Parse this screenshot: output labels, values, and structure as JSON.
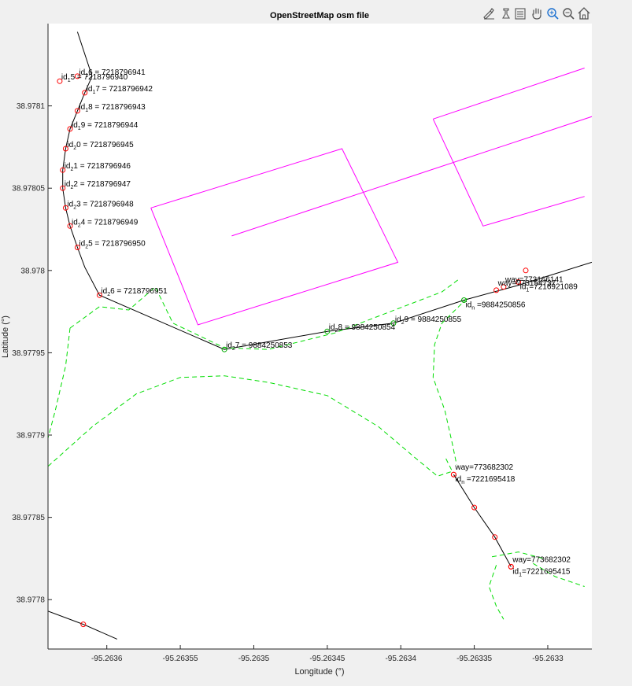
{
  "chart_data": {
    "type": "line",
    "title": "OpenStreetMap osm file",
    "xlabel": "Longitude (°)",
    "ylabel": "Latitude (°)",
    "xlim": [
      -95.26364,
      -95.26327
    ],
    "ylim": [
      38.97777,
      38.97815
    ],
    "x_ticks": [
      -95.2636,
      -95.26355,
      -95.2635,
      -95.26345,
      -95.2634,
      -95.26335,
      -95.2633
    ],
    "x_tick_labels": [
      "-95.2636",
      "-95.26355",
      "-95.2635",
      "-95.26345",
      "-95.2634",
      "-95.26335",
      "-95.2633"
    ],
    "y_ticks": [
      38.9778,
      38.97785,
      38.9779,
      38.97795,
      38.978,
      38.97805,
      38.9781
    ],
    "y_tick_labels": [
      "38.9778",
      "38.97785",
      "38.9779",
      "38.97795",
      "38.978",
      "38.97805",
      "38.9781"
    ],
    "grid": false,
    "series": [
      {
        "style": "black-solid",
        "color": "#000000",
        "points": [
          [
            -95.26362,
            38.978145
          ],
          [
            -95.26361,
            38.978118
          ],
          [
            -95.263615,
            38.978108
          ],
          [
            -95.26362,
            38.978097
          ],
          [
            -95.263625,
            38.978086
          ],
          [
            -95.263628,
            38.978074
          ],
          [
            -95.26363,
            38.978061
          ],
          [
            -95.26363,
            38.97805
          ],
          [
            -95.263628,
            38.978038
          ],
          [
            -95.263625,
            38.978027
          ],
          [
            -95.26362,
            38.978014
          ],
          [
            -95.263615,
            38.978002
          ],
          [
            -95.263605,
            38.977985
          ],
          [
            -95.26352,
            38.977952
          ],
          [
            -95.26345,
            38.977963
          ],
          [
            -95.263405,
            38.977968
          ],
          [
            -95.263357,
            38.977982
          ],
          [
            -95.26332,
            38.977991
          ],
          [
            -95.26327,
            38.978005
          ]
        ]
      },
      {
        "style": "black-solid",
        "color": "#000000",
        "points": [
          [
            -95.263364,
            38.977876
          ],
          [
            -95.26335,
            38.977856
          ],
          [
            -95.263336,
            38.977838
          ],
          [
            -95.263325,
            38.97782
          ]
        ]
      },
      {
        "style": "black-solid",
        "color": "#000000",
        "points": [
          [
            -95.26364,
            38.977793
          ],
          [
            -95.263616,
            38.977785
          ],
          [
            -95.263593,
            38.977776
          ]
        ]
      },
      {
        "style": "magenta-solid",
        "color": "#ff00ff",
        "points": [
          [
            -95.26357,
            38.978038
          ],
          [
            -95.26344,
            38.978074
          ],
          [
            -95.263402,
            38.978005
          ],
          [
            -95.263538,
            38.977967
          ],
          [
            -95.26357,
            38.978038
          ]
        ]
      },
      {
        "style": "magenta-solid",
        "color": "#ff00ff",
        "points": [
          [
            -95.263515,
            38.978021
          ],
          [
            -95.263265,
            38.978095
          ]
        ]
      },
      {
        "style": "magenta-solid",
        "color": "#ff00ff",
        "points": [
          [
            -95.263378,
            38.978092
          ],
          [
            -95.263275,
            38.978123
          ]
        ]
      },
      {
        "style": "magenta-solid",
        "color": "#ff00ff",
        "points": [
          [
            -95.263378,
            38.978092
          ],
          [
            -95.263344,
            38.978027
          ],
          [
            -95.263275,
            38.978045
          ]
        ]
      },
      {
        "style": "green-dashed",
        "color": "#00dd00",
        "points": [
          [
            -95.263625,
            38.977965
          ],
          [
            -95.263605,
            38.977978
          ],
          [
            -95.263585,
            38.977976
          ],
          [
            -95.263567,
            38.97799
          ],
          [
            -95.263555,
            38.977968
          ],
          [
            -95.26352,
            38.977953
          ],
          [
            -95.26349,
            38.977952
          ],
          [
            -95.263445,
            38.977962
          ],
          [
            -95.26341,
            38.977974
          ],
          [
            -95.263372,
            38.977987
          ],
          [
            -95.26336,
            38.977995
          ]
        ]
      },
      {
        "style": "green-dashed",
        "color": "#00dd00",
        "points": [
          [
            -95.263625,
            38.977965
          ],
          [
            -95.263628,
            38.977942
          ],
          [
            -95.263635,
            38.977915
          ],
          [
            -95.263643,
            38.977888
          ]
        ]
      },
      {
        "style": "green-dashed",
        "color": "#00dd00",
        "points": [
          [
            -95.26364,
            38.977881
          ],
          [
            -95.26361,
            38.977905
          ],
          [
            -95.26358,
            38.977925
          ],
          [
            -95.26355,
            38.977935
          ],
          [
            -95.26352,
            38.977936
          ],
          [
            -95.26349,
            38.977932
          ],
          [
            -95.26345,
            38.977924
          ],
          [
            -95.263415,
            38.977905
          ],
          [
            -95.26339,
            38.977886
          ],
          [
            -95.263375,
            38.977875
          ],
          [
            -95.263365,
            38.977878
          ],
          [
            -95.26337,
            38.977887
          ]
        ]
      },
      {
        "style": "green-dashed",
        "color": "#00dd00",
        "points": [
          [
            -95.263355,
            38.977983
          ],
          [
            -95.263372,
            38.977968
          ],
          [
            -95.263377,
            38.977955
          ],
          [
            -95.263378,
            38.977935
          ],
          [
            -95.26337,
            38.977915
          ],
          [
            -95.263365,
            38.977895
          ],
          [
            -95.263362,
            38.977882
          ]
        ]
      },
      {
        "style": "green-dashed",
        "color": "#00dd00",
        "points": [
          [
            -95.263335,
            38.977821
          ],
          [
            -95.26334,
            38.977808
          ],
          [
            -95.263335,
            38.977796
          ],
          [
            -95.26333,
            38.977788
          ]
        ]
      },
      {
        "style": "green-dashed",
        "color": "#00dd00",
        "points": [
          [
            -95.263338,
            38.977826
          ],
          [
            -95.26332,
            38.977829
          ],
          [
            -95.263303,
            38.977825
          ]
        ]
      },
      {
        "style": "green-dashed",
        "color": "#00dd00",
        "points": [
          [
            -95.26331,
            38.977822
          ],
          [
            -95.263295,
            38.977814
          ],
          [
            -95.263275,
            38.977808
          ]
        ]
      }
    ],
    "nodes": [
      {
        "x": -95.263632,
        "y": 38.978115,
        "color": "#ff0000",
        "label": "id",
        "sub": "1",
        "rest": "5 = 7218796940"
      },
      {
        "x": -95.26362,
        "y": 38.978118,
        "color": "#ff0000",
        "label": "id",
        "sub": "1",
        "rest": "6 = 7218796941"
      },
      {
        "x": -95.263615,
        "y": 38.978108,
        "color": "#ff0000",
        "label": "id",
        "sub": "1",
        "rest": "7 = 7218796942"
      },
      {
        "x": -95.26362,
        "y": 38.978097,
        "color": "#ff0000",
        "label": "id",
        "sub": "1",
        "rest": "8 = 7218796943"
      },
      {
        "x": -95.263625,
        "y": 38.978086,
        "color": "#ff0000",
        "label": "id",
        "sub": "1",
        "rest": "9 = 7218796944"
      },
      {
        "x": -95.263628,
        "y": 38.978074,
        "color": "#ff0000",
        "label": "id",
        "sub": "2",
        "rest": "0 = 7218796945"
      },
      {
        "x": -95.26363,
        "y": 38.978061,
        "color": "#ff0000",
        "label": "id",
        "sub": "2",
        "rest": "1 = 7218796946"
      },
      {
        "x": -95.26363,
        "y": 38.97805,
        "color": "#ff0000",
        "label": "id",
        "sub": "2",
        "rest": "2 = 7218796947"
      },
      {
        "x": -95.263628,
        "y": 38.978038,
        "color": "#ff0000",
        "label": "id",
        "sub": "2",
        "rest": "3 = 7218796948"
      },
      {
        "x": -95.263625,
        "y": 38.978027,
        "color": "#ff0000",
        "label": "id",
        "sub": "2",
        "rest": "4 = 7218796949"
      },
      {
        "x": -95.26362,
        "y": 38.978014,
        "color": "#ff0000",
        "label": "id",
        "sub": "2",
        "rest": "5 = 7218796950"
      },
      {
        "x": -95.263605,
        "y": 38.977985,
        "color": "#ff0000",
        "label": "id",
        "sub": "2",
        "rest": "6 = 7218796951"
      },
      {
        "x": -95.26352,
        "y": 38.977952,
        "color": "#00aa00",
        "label": "id",
        "sub": "2",
        "rest": "7 = 9884250853"
      },
      {
        "x": -95.26345,
        "y": 38.977963,
        "color": "#00aa00",
        "label": "id",
        "sub": "2",
        "rest": "8 = 9884250854"
      },
      {
        "x": -95.263405,
        "y": 38.977968,
        "color": "#00aa00",
        "label": "id",
        "sub": "2",
        "rest": "9 = 9884250855"
      },
      {
        "x": -95.263357,
        "y": 38.977982,
        "color": "#00aa00",
        "label": "id",
        "sub": "n",
        "rest": " =9884250856"
      },
      {
        "x": -95.263335,
        "y": 38.977988,
        "color": "#ff0000",
        "label": "way=773154737"
      },
      {
        "x": -95.26333,
        "y": 38.97799,
        "color": "#ff0000",
        "label": "way=773166141"
      },
      {
        "x": -95.26332,
        "y": 38.977993,
        "color": "#ff0000",
        "label": "id",
        "sub": "1",
        "rest": "=7216921089"
      },
      {
        "x": -95.263315,
        "y": 38.978,
        "color": "#ff0000",
        "label": ""
      },
      {
        "x": -95.263364,
        "y": 38.977876,
        "color": "#ff0000",
        "label": "way=773682302"
      },
      {
        "x": -95.263364,
        "y": 38.977876,
        "color": "#ff0000",
        "label": "id",
        "sub": "n",
        "rest": " =7221695418"
      },
      {
        "x": -95.26335,
        "y": 38.977856,
        "color": "#ff0000",
        "label": ""
      },
      {
        "x": -95.263336,
        "y": 38.977838,
        "color": "#ff0000",
        "label": ""
      },
      {
        "x": -95.263325,
        "y": 38.97782,
        "color": "#ff0000",
        "label": "way=773682302"
      },
      {
        "x": -95.263325,
        "y": 38.97782,
        "color": "#ff0000",
        "label": "id",
        "sub": "1",
        "rest": "=7221695415"
      },
      {
        "x": -95.263616,
        "y": 38.977785,
        "color": "#ff0000",
        "label": ""
      }
    ]
  },
  "toolbar": {
    "icons": [
      "brush-icon",
      "data-cursor-icon",
      "insert-legend-icon",
      "pan-hand-icon",
      "zoom-in-icon",
      "zoom-out-icon",
      "home-icon"
    ]
  }
}
